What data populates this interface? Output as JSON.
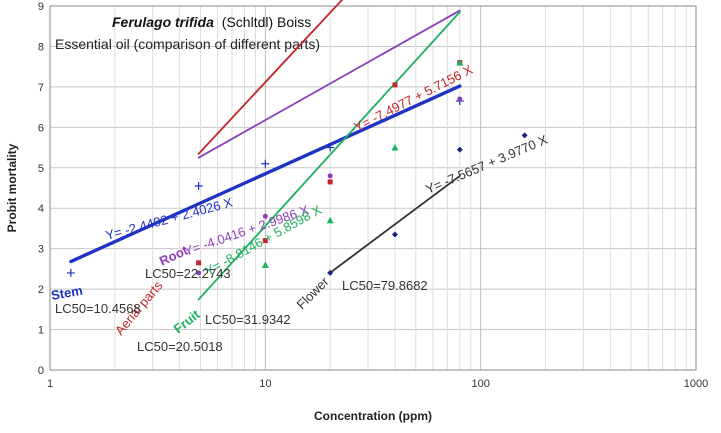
{
  "chart_data": {
    "type": "scatter",
    "title": "Ferulago trifida",
    "title_author": "(Schltdl) Boiss",
    "subtitle": "Essential oil (comparison of different parts)",
    "xlabel": "Concentration (ppm)",
    "ylabel": "Probit mortality",
    "x_scale": "log",
    "xlim": [
      1,
      1000
    ],
    "ylim": [
      0,
      9
    ],
    "x_ticks": [
      1,
      10,
      100,
      1000
    ],
    "x_tick_labels": [
      "1",
      "10",
      "100",
      "1000"
    ],
    "y_ticks": [
      0,
      1,
      2,
      3,
      4,
      5,
      6,
      7,
      8,
      9
    ],
    "y_tick_labels": [
      "0",
      "1",
      "2",
      "3",
      "4",
      "5",
      "6",
      "7",
      "8",
      "9"
    ],
    "grid": true,
    "series": [
      {
        "name": "Stem",
        "color": "#1f33c4",
        "marker": "plus",
        "points": [
          [
            1.25,
            2.4
          ],
          [
            4.9,
            4.55
          ],
          [
            10,
            5.1
          ],
          [
            20,
            5.5
          ],
          [
            80,
            6.65
          ]
        ],
        "fit": {
          "x_range": [
            1.25,
            80
          ],
          "intercept": 2.4492,
          "slope": 2.4026
        },
        "equation": "Y= -2.4492 + 2.4026 X",
        "lc50": "LC50=10.4568"
      },
      {
        "name": "Root",
        "color": "#8a3fb8",
        "marker": "dot",
        "points": [
          [
            4.9,
            2.4
          ],
          [
            10,
            3.8
          ],
          [
            20,
            4.8
          ],
          [
            80,
            6.7
          ]
        ],
        "fit": {
          "x_range": [
            4.9,
            80
          ],
          "intercept": 3.18,
          "slope": 2.9986
        },
        "equation": "Y= -4.0416 + 2.9986 X",
        "lc50": "LC50=22.2743"
      },
      {
        "name": "Aerial parts",
        "color": "#c0262c",
        "marker": "square",
        "points": [
          [
            4.9,
            2.65
          ],
          [
            10,
            3.2
          ],
          [
            20,
            4.65
          ],
          [
            40,
            7.05
          ],
          [
            80,
            7.6
          ]
        ],
        "fit": {
          "x_range": [
            4.9,
            80
          ],
          "intercept": 1.4,
          "slope": 5.7156
        },
        "equation": "Y= -7.4977 + 5.7156 X",
        "lc50": "LC50=20.5018"
      },
      {
        "name": "Fruit",
        "color": "#1db060",
        "marker": "triangle",
        "points": [
          [
            10,
            2.6
          ],
          [
            20,
            3.7
          ],
          [
            40,
            5.5
          ],
          [
            80,
            7.6
          ]
        ],
        "fit": {
          "x_range": [
            4.9,
            80
          ],
          "intercept": -2.3,
          "slope": 5.8598
        },
        "equation": "Y= -8.8146 + 5.8598 X",
        "lc50": "LC50=31.9342"
      },
      {
        "name": "Flower",
        "color": "#333333",
        "marker": "diamond",
        "points": [
          [
            20,
            2.4
          ],
          [
            40,
            3.35
          ],
          [
            80,
            5.45
          ],
          [
            160,
            5.8
          ]
        ],
        "fit": {
          "x_range": [
            20,
            80
          ],
          "intercept": -2.77,
          "slope": 3.977
        },
        "equation": "Y= -7.5657 + 3.9770 X",
        "lc50": "LC50=79.8682"
      }
    ]
  }
}
